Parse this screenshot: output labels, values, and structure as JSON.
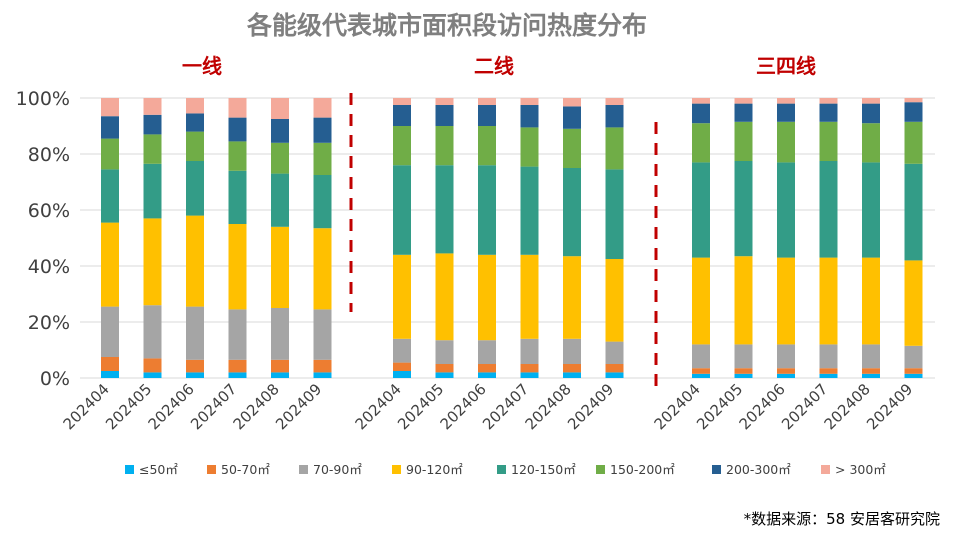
{
  "chart_data": {
    "type": "bar",
    "stacked": true,
    "title": "各能级代表城市面积段访问热度分布",
    "source": "*数据来源：58 安居客研究院",
    "xlabel": "",
    "ylabel": "",
    "ylim": [
      0,
      100
    ],
    "yticks": [
      "0%",
      "20%",
      "40%",
      "60%",
      "80%",
      "100%"
    ],
    "groups": [
      {
        "name": "一线",
        "categories": [
          "202404",
          "202405",
          "202406",
          "202407",
          "202408",
          "202409"
        ]
      },
      {
        "name": "二线",
        "categories": [
          "202404",
          "202405",
          "202406",
          "202407",
          "202408",
          "202409"
        ]
      },
      {
        "name": "三四线",
        "categories": [
          "202404",
          "202405",
          "202406",
          "202407",
          "202408",
          "202409"
        ]
      }
    ],
    "series": [
      {
        "name": "≤50㎡",
        "color": "#00B0F0",
        "values": [
          2.5,
          2.0,
          2.0,
          2.0,
          2.0,
          2.0,
          2.5,
          2.0,
          2.0,
          2.0,
          2.0,
          2.0,
          1.5,
          1.5,
          1.5,
          1.5,
          1.5,
          1.5
        ]
      },
      {
        "name": "50-70㎡",
        "color": "#ED7D31",
        "values": [
          5.0,
          5.0,
          4.5,
          4.5,
          4.5,
          4.5,
          3.0,
          3.0,
          3.0,
          3.0,
          3.0,
          3.0,
          2.0,
          2.0,
          2.0,
          2.0,
          2.0,
          2.0
        ]
      },
      {
        "name": "70-90㎡",
        "color": "#A5A5A5",
        "values": [
          18.0,
          19.0,
          19.0,
          18.0,
          18.5,
          18.0,
          8.5,
          8.5,
          8.5,
          9.0,
          9.0,
          8.0,
          8.5,
          8.5,
          8.5,
          8.5,
          8.5,
          8.0
        ]
      },
      {
        "name": "90-120㎡",
        "color": "#FFC000",
        "values": [
          30.0,
          31.0,
          32.5,
          30.5,
          29.0,
          29.0,
          30.0,
          31.0,
          30.5,
          30.0,
          29.5,
          29.5,
          31.0,
          31.5,
          31.0,
          31.0,
          31.0,
          30.5
        ]
      },
      {
        "name": "120-150㎡",
        "color": "#339C87",
        "values": [
          19.0,
          19.5,
          19.5,
          19.0,
          19.0,
          19.0,
          32.0,
          31.5,
          32.0,
          31.5,
          31.5,
          32.0,
          34.0,
          34.0,
          34.0,
          34.5,
          34.0,
          34.5
        ]
      },
      {
        "name": "150-200㎡",
        "color": "#70AD47",
        "values": [
          11.0,
          10.5,
          10.5,
          10.5,
          11.0,
          11.5,
          14.0,
          14.0,
          14.0,
          14.0,
          14.0,
          15.0,
          14.0,
          14.0,
          14.5,
          14.0,
          14.0,
          15.0
        ]
      },
      {
        "name": "200-300㎡",
        "color": "#255E91",
        "values": [
          8.0,
          7.0,
          6.5,
          8.5,
          8.5,
          9.0,
          7.5,
          7.5,
          7.5,
          8.0,
          8.0,
          8.0,
          7.0,
          6.5,
          6.5,
          6.5,
          7.0,
          7.0
        ]
      },
      {
        "name": "> 300㎡",
        "color": "#F4A99A",
        "values": [
          6.5,
          6.0,
          5.5,
          7.0,
          7.5,
          7.0,
          2.5,
          2.5,
          2.5,
          2.5,
          3.0,
          2.5,
          2.0,
          2.0,
          2.0,
          2.0,
          2.0,
          1.5
        ]
      }
    ]
  },
  "colors": {
    "title": "#7F7F7F",
    "group_label": "#C00000",
    "divider": "#C00000",
    "gridline": "#D9D9D9",
    "axis_text": "#404040"
  }
}
